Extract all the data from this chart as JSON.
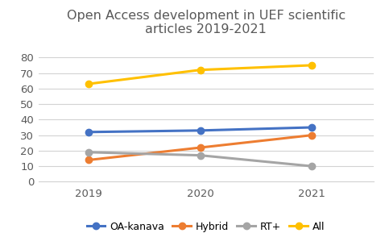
{
  "title": "Open Access development in UEF scientific\narticles 2019-2021",
  "years": [
    2019,
    2020,
    2021
  ],
  "series": {
    "OA-kanava": {
      "values": [
        32,
        33,
        35
      ],
      "color": "#4472C4",
      "marker": "o"
    },
    "Hybrid": {
      "values": [
        14,
        22,
        30
      ],
      "color": "#ED7D31",
      "marker": "o"
    },
    "RT+": {
      "values": [
        19,
        17,
        10
      ],
      "color": "#A5A5A5",
      "marker": "o"
    },
    "All": {
      "values": [
        63,
        72,
        75
      ],
      "color": "#FFC000",
      "marker": "o"
    }
  },
  "ylim": [
    0,
    90
  ],
  "yticks": [
    0,
    10,
    20,
    30,
    40,
    50,
    60,
    70,
    80
  ],
  "xticks": [
    2019,
    2020,
    2021
  ],
  "legend_order": [
    "OA-kanava",
    "Hybrid",
    "RT+",
    "All"
  ],
  "background_color": "#FFFFFF",
  "grid_color": "#D3D3D3",
  "title_fontsize": 11.5,
  "title_color": "#595959",
  "tick_fontsize": 9.5,
  "legend_fontsize": 9,
  "line_width": 2.2,
  "marker_size": 6
}
